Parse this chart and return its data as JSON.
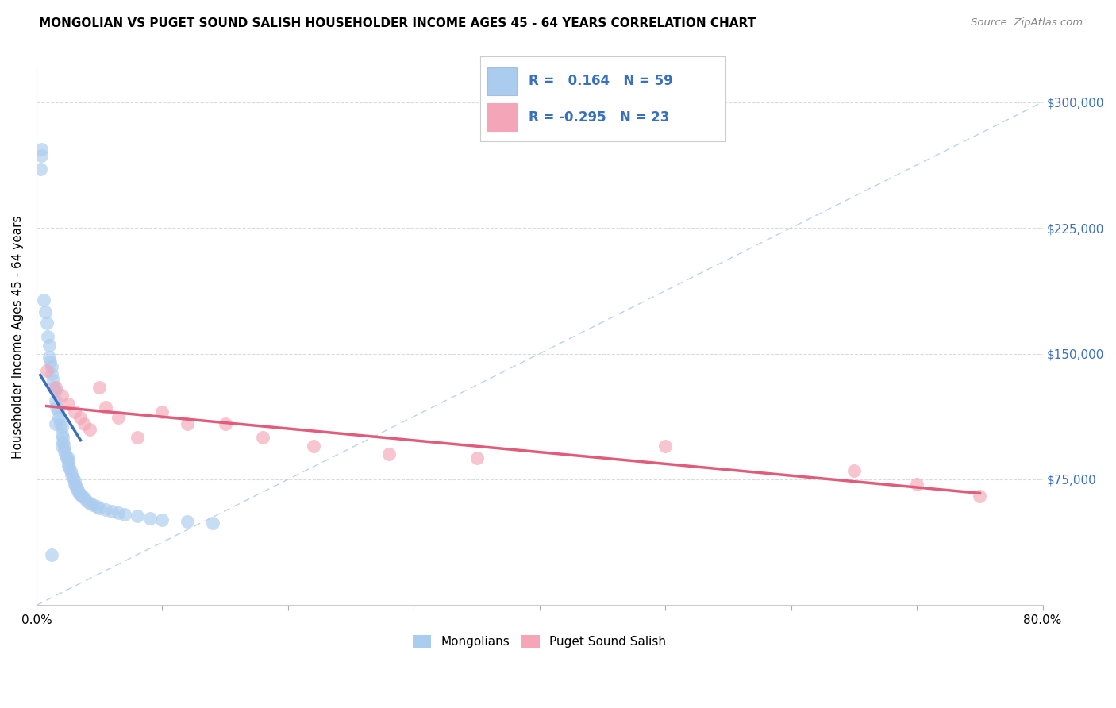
{
  "title": "MONGOLIAN VS PUGET SOUND SALISH HOUSEHOLDER INCOME AGES 45 - 64 YEARS CORRELATION CHART",
  "source": "Source: ZipAtlas.com",
  "ylabel": "Householder Income Ages 45 - 64 years",
  "x_tick_values": [
    0,
    10,
    20,
    30,
    40,
    50,
    60,
    70,
    80
  ],
  "y_tick_labels": [
    "$75,000",
    "$150,000",
    "$225,000",
    "$300,000"
  ],
  "y_tick_values": [
    75000,
    150000,
    225000,
    300000
  ],
  "xlim": [
    0,
    80
  ],
  "ylim": [
    0,
    320000
  ],
  "mongolian_color": "#aaccee",
  "salish_color": "#f4a6b8",
  "mongolian_trend_color": "#3a6fbe",
  "salish_trend_color": "#e05c7a",
  "reference_line_color": "#aac8e8",
  "mongolians_label": "Mongolians",
  "salish_label": "Puget Sound Salish",
  "background_color": "#ffffff",
  "grid_color": "#cccccc",
  "legend_text_color": "#3a6fbe",
  "right_tick_color": "#3a6fbe",
  "mongolian_x": [
    0.3,
    0.35,
    0.4,
    0.6,
    0.7,
    0.8,
    0.9,
    1.0,
    1.0,
    1.1,
    1.2,
    1.2,
    1.3,
    1.4,
    1.5,
    1.5,
    1.6,
    1.7,
    1.8,
    1.9,
    2.0,
    2.0,
    2.1,
    2.1,
    2.2,
    2.2,
    2.3,
    2.4,
    2.5,
    2.5,
    2.6,
    2.7,
    2.8,
    2.9,
    3.0,
    3.0,
    3.1,
    3.2,
    3.3,
    3.4,
    3.5,
    3.6,
    3.8,
    4.0,
    4.2,
    4.5,
    4.8,
    5.0,
    5.5,
    6.0,
    6.5,
    7.0,
    8.0,
    9.0,
    10.0,
    12.0,
    14.0,
    1.5,
    2.0,
    2.5
  ],
  "mongolian_y": [
    260000,
    272000,
    268000,
    182000,
    175000,
    168000,
    160000,
    155000,
    148000,
    145000,
    142000,
    138000,
    134000,
    130000,
    128000,
    122000,
    118000,
    116000,
    112000,
    108000,
    106000,
    102000,
    100000,
    97000,
    95000,
    92000,
    90000,
    88000,
    86000,
    83000,
    82000,
    80000,
    78000,
    76000,
    74000,
    72000,
    71000,
    70000,
    68000,
    67000,
    66000,
    65000,
    64000,
    62000,
    61000,
    60000,
    59000,
    58000,
    57000,
    56000,
    55000,
    54000,
    53000,
    52000,
    51000,
    50000,
    49000,
    108000,
    95000,
    88000
  ],
  "salish_x": [
    0.8,
    1.5,
    2.0,
    2.5,
    3.0,
    3.5,
    3.8,
    4.2,
    5.0,
    5.5,
    6.5,
    8.0,
    10.0,
    12.0,
    15.0,
    18.0,
    22.0,
    28.0,
    35.0,
    50.0,
    65.0,
    70.0,
    75.0
  ],
  "salish_y": [
    140000,
    130000,
    125000,
    120000,
    115000,
    112000,
    108000,
    105000,
    130000,
    118000,
    112000,
    100000,
    115000,
    108000,
    108000,
    100000,
    95000,
    90000,
    88000,
    95000,
    80000,
    72000,
    65000
  ],
  "one_blue_low_x": 1.2,
  "one_blue_low_y": 30000,
  "blue_trend_x_start": 0.3,
  "blue_trend_x_end": 3.5,
  "pink_trend_x_start": 0.8,
  "pink_trend_x_end": 75.0
}
